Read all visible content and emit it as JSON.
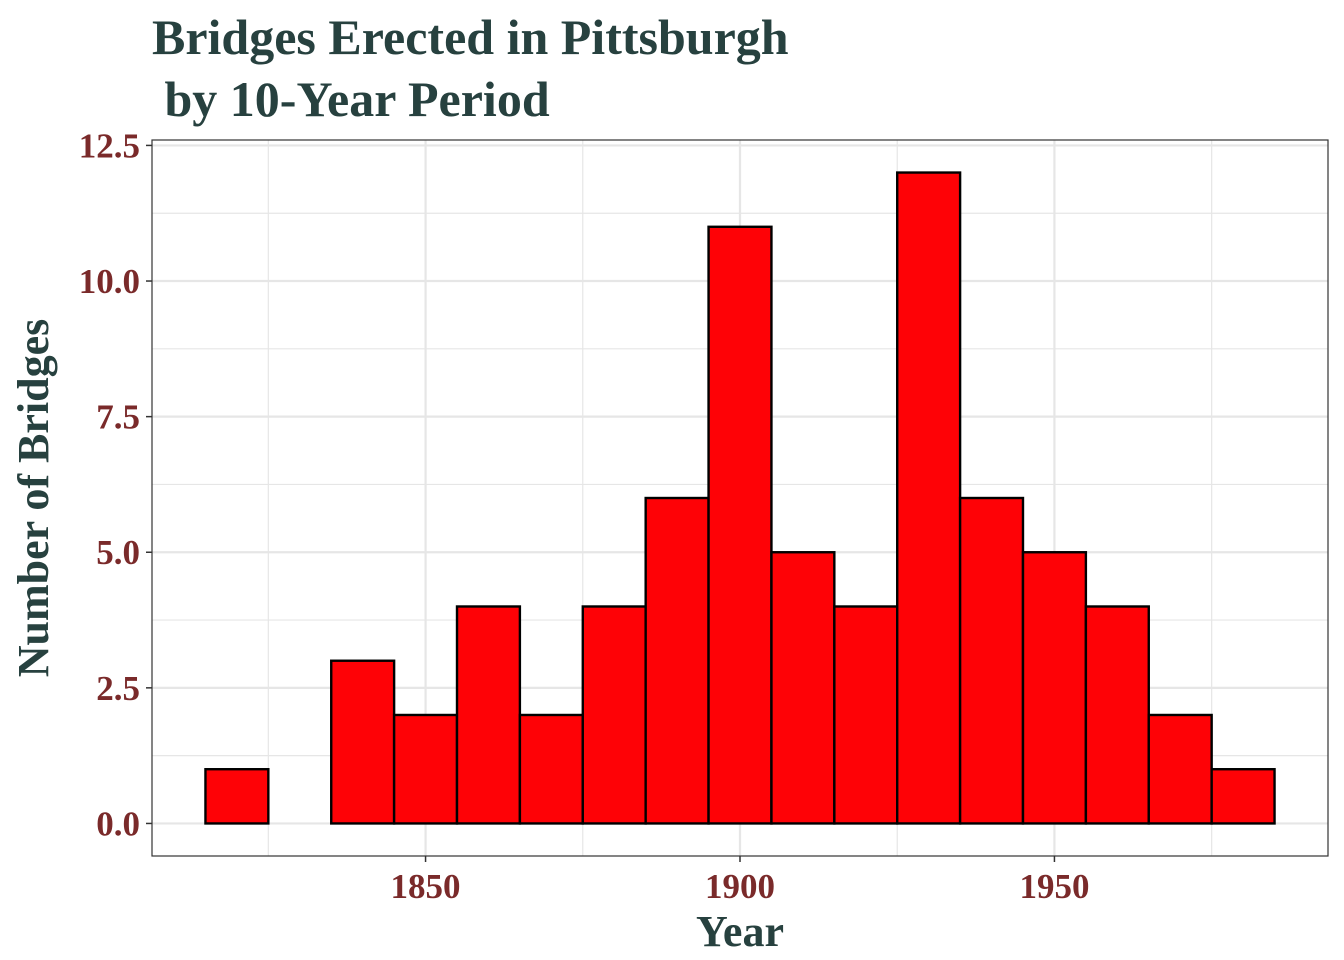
{
  "colors": {
    "title": "#27413f",
    "axis_title": "#27413f",
    "tick_labels": "#7a2a2a",
    "bar_fill": "#fe0206",
    "bar_outline": "#000000",
    "grid": "#e6e6e6",
    "panel_border": "#333333"
  },
  "chart_data": {
    "type": "bar",
    "title": [
      "Bridges Erected in Pittsburgh",
      " by 10-Year Period"
    ],
    "xlabel": "Year",
    "ylabel": "Number of Bridges",
    "bin_width": 10,
    "bins": [
      {
        "x": 1820,
        "count": 1
      },
      {
        "x": 1830,
        "count": 0
      },
      {
        "x": 1840,
        "count": 3
      },
      {
        "x": 1850,
        "count": 2
      },
      {
        "x": 1860,
        "count": 4
      },
      {
        "x": 1870,
        "count": 2
      },
      {
        "x": 1880,
        "count": 4
      },
      {
        "x": 1890,
        "count": 6
      },
      {
        "x": 1900,
        "count": 11
      },
      {
        "x": 1910,
        "count": 5
      },
      {
        "x": 1920,
        "count": 4
      },
      {
        "x": 1930,
        "count": 12
      },
      {
        "x": 1940,
        "count": 6
      },
      {
        "x": 1950,
        "count": 5
      },
      {
        "x": 1960,
        "count": 4
      },
      {
        "x": 1970,
        "count": 2
      },
      {
        "x": 1980,
        "count": 1
      }
    ],
    "xlim": [
      1806.5,
      1993.5
    ],
    "ylim": [
      -0.6,
      12.6
    ],
    "x_ticks": [
      1850,
      1900,
      1950
    ],
    "x_tick_labels": [
      "1850",
      "1900",
      "1950"
    ],
    "x_minor_grid": [
      1825,
      1875,
      1925,
      1975
    ],
    "y_ticks": [
      0,
      2.5,
      5,
      7.5,
      10,
      12.5
    ],
    "y_tick_labels": [
      "0.0",
      "2.5",
      "5.0",
      "7.5",
      "10.0",
      "12.5"
    ],
    "y_minor_grid": [
      1.25,
      3.75,
      6.25,
      8.75,
      11.25
    ],
    "grid": true,
    "legend": "none"
  }
}
